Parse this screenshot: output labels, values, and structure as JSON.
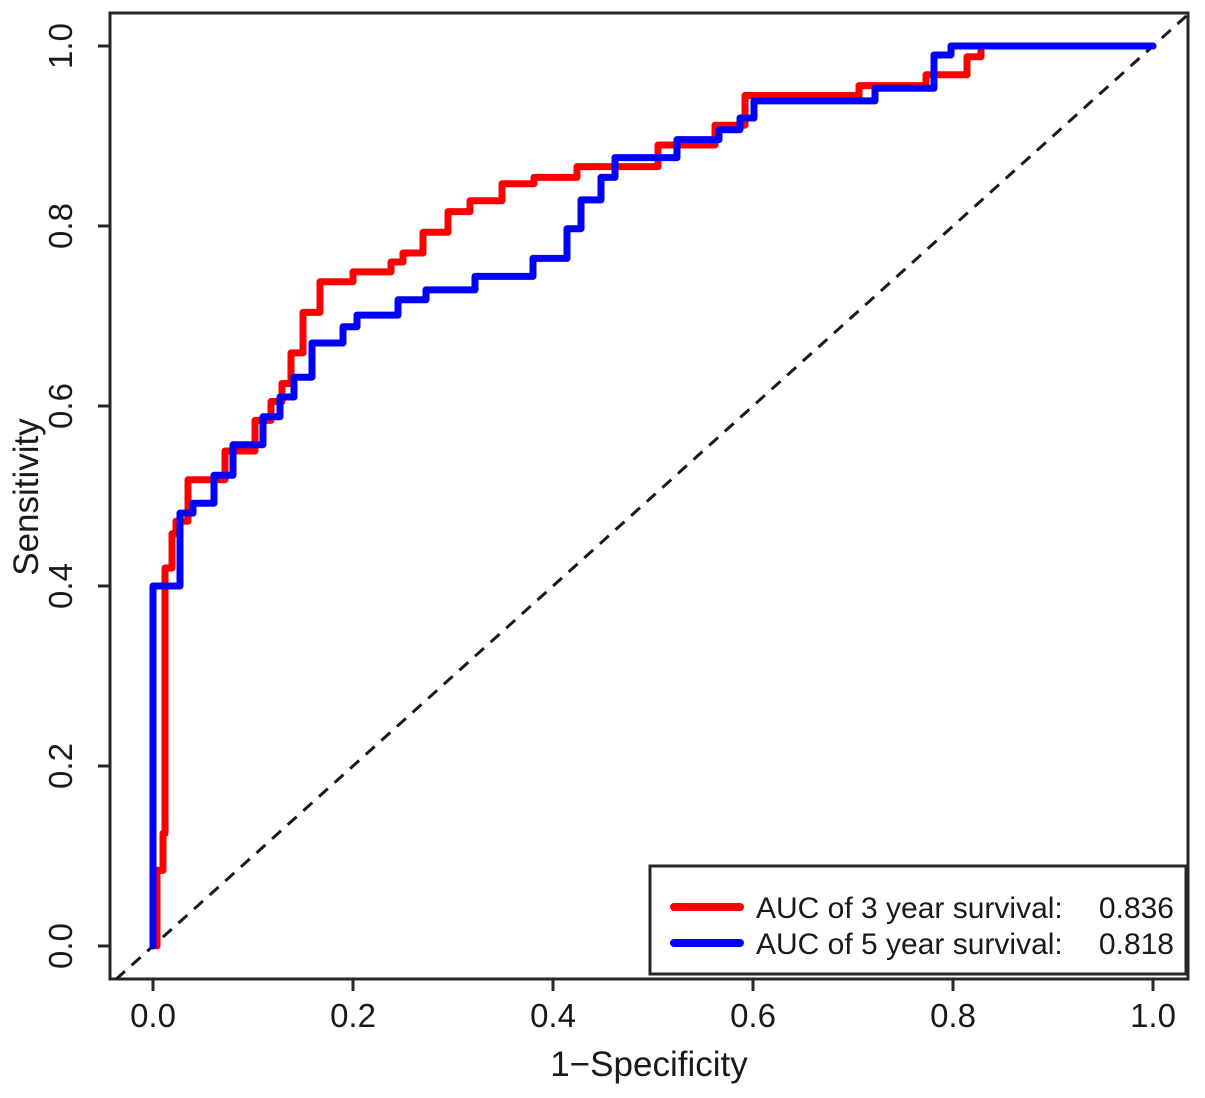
{
  "chart_data": {
    "type": "line",
    "subtype": "roc-step-curves",
    "title": "",
    "xlabel": "1−Specificity",
    "ylabel": "Sensitivity",
    "xlim": [
      0.0,
      1.0
    ],
    "ylim": [
      0.0,
      1.0
    ],
    "grid": false,
    "x_axis": {
      "tick_values": [
        0.0,
        0.2,
        0.4,
        0.6,
        0.8,
        1.0
      ],
      "tick_labels": [
        "0.0",
        "0.2",
        "0.4",
        "0.6",
        "0.8",
        "1.0"
      ]
    },
    "y_axis": {
      "tick_values": [
        0.0,
        0.2,
        0.4,
        0.6,
        0.8,
        1.0
      ],
      "tick_labels": [
        "0.0",
        "0.2",
        "0.4",
        "0.6",
        "0.8",
        "1.0"
      ]
    },
    "reference_line": {
      "style": "dashed",
      "color": "#1a1a1a",
      "from": [
        -0.037,
        -0.037
      ],
      "to": [
        1.037,
        1.037
      ]
    },
    "series": [
      {
        "name": "3-year-survival",
        "color": "#ff0000",
        "auc": 0.836,
        "points": [
          [
            0.004,
            0.0
          ],
          [
            0.004,
            0.084
          ],
          [
            0.01,
            0.084
          ],
          [
            0.01,
            0.125
          ],
          [
            0.012,
            0.125
          ],
          [
            0.012,
            0.42
          ],
          [
            0.019,
            0.42
          ],
          [
            0.019,
            0.458
          ],
          [
            0.023,
            0.458
          ],
          [
            0.023,
            0.472
          ],
          [
            0.035,
            0.472
          ],
          [
            0.035,
            0.518
          ],
          [
            0.072,
            0.518
          ],
          [
            0.072,
            0.55
          ],
          [
            0.102,
            0.55
          ],
          [
            0.102,
            0.584
          ],
          [
            0.118,
            0.584
          ],
          [
            0.118,
            0.605
          ],
          [
            0.129,
            0.605
          ],
          [
            0.129,
            0.625
          ],
          [
            0.138,
            0.625
          ],
          [
            0.138,
            0.659
          ],
          [
            0.15,
            0.659
          ],
          [
            0.15,
            0.704
          ],
          [
            0.167,
            0.704
          ],
          [
            0.167,
            0.738
          ],
          [
            0.2,
            0.738
          ],
          [
            0.2,
            0.749
          ],
          [
            0.238,
            0.749
          ],
          [
            0.238,
            0.76
          ],
          [
            0.25,
            0.76
          ],
          [
            0.25,
            0.77
          ],
          [
            0.27,
            0.77
          ],
          [
            0.27,
            0.793
          ],
          [
            0.295,
            0.793
          ],
          [
            0.295,
            0.816
          ],
          [
            0.317,
            0.816
          ],
          [
            0.317,
            0.828
          ],
          [
            0.349,
            0.828
          ],
          [
            0.349,
            0.847
          ],
          [
            0.381,
            0.847
          ],
          [
            0.381,
            0.854
          ],
          [
            0.424,
            0.854
          ],
          [
            0.424,
            0.866
          ],
          [
            0.505,
            0.866
          ],
          [
            0.505,
            0.89
          ],
          [
            0.562,
            0.89
          ],
          [
            0.562,
            0.912
          ],
          [
            0.592,
            0.912
          ],
          [
            0.592,
            0.945
          ],
          [
            0.706,
            0.945
          ],
          [
            0.706,
            0.956
          ],
          [
            0.773,
            0.956
          ],
          [
            0.773,
            0.968
          ],
          [
            0.814,
            0.968
          ],
          [
            0.814,
            0.988
          ],
          [
            0.828,
            0.988
          ],
          [
            0.828,
            1.0
          ],
          [
            1.0,
            1.0
          ]
        ]
      },
      {
        "name": "5-year-survival",
        "color": "#0000ff",
        "auc": 0.818,
        "points": [
          [
            0.0,
            0.0
          ],
          [
            0.0,
            0.4
          ],
          [
            0.027,
            0.4
          ],
          [
            0.027,
            0.481
          ],
          [
            0.04,
            0.481
          ],
          [
            0.04,
            0.492
          ],
          [
            0.061,
            0.492
          ],
          [
            0.061,
            0.523
          ],
          [
            0.08,
            0.523
          ],
          [
            0.08,
            0.557
          ],
          [
            0.11,
            0.557
          ],
          [
            0.11,
            0.588
          ],
          [
            0.127,
            0.588
          ],
          [
            0.127,
            0.61
          ],
          [
            0.141,
            0.61
          ],
          [
            0.141,
            0.632
          ],
          [
            0.159,
            0.632
          ],
          [
            0.159,
            0.67
          ],
          [
            0.19,
            0.67
          ],
          [
            0.19,
            0.688
          ],
          [
            0.204,
            0.688
          ],
          [
            0.204,
            0.701
          ],
          [
            0.245,
            0.701
          ],
          [
            0.245,
            0.718
          ],
          [
            0.273,
            0.718
          ],
          [
            0.273,
            0.729
          ],
          [
            0.322,
            0.729
          ],
          [
            0.322,
            0.744
          ],
          [
            0.38,
            0.744
          ],
          [
            0.38,
            0.764
          ],
          [
            0.414,
            0.764
          ],
          [
            0.414,
            0.797
          ],
          [
            0.428,
            0.797
          ],
          [
            0.428,
            0.829
          ],
          [
            0.448,
            0.829
          ],
          [
            0.448,
            0.854
          ],
          [
            0.462,
            0.854
          ],
          [
            0.462,
            0.876
          ],
          [
            0.524,
            0.876
          ],
          [
            0.524,
            0.896
          ],
          [
            0.566,
            0.896
          ],
          [
            0.566,
            0.907
          ],
          [
            0.587,
            0.907
          ],
          [
            0.587,
            0.92
          ],
          [
            0.601,
            0.92
          ],
          [
            0.601,
            0.939
          ],
          [
            0.722,
            0.939
          ],
          [
            0.722,
            0.953
          ],
          [
            0.781,
            0.953
          ],
          [
            0.781,
            0.99
          ],
          [
            0.798,
            0.99
          ],
          [
            0.798,
            1.0
          ],
          [
            1.0,
            1.0
          ]
        ]
      }
    ],
    "legend": {
      "position": "bottom-right",
      "entries": [
        {
          "label": "AUC of 3 year survival:",
          "value": "0.836",
          "color": "#ff0000"
        },
        {
          "label": "AUC of 5 year survival:",
          "value": "0.818",
          "color": "#0000ff"
        }
      ]
    }
  }
}
